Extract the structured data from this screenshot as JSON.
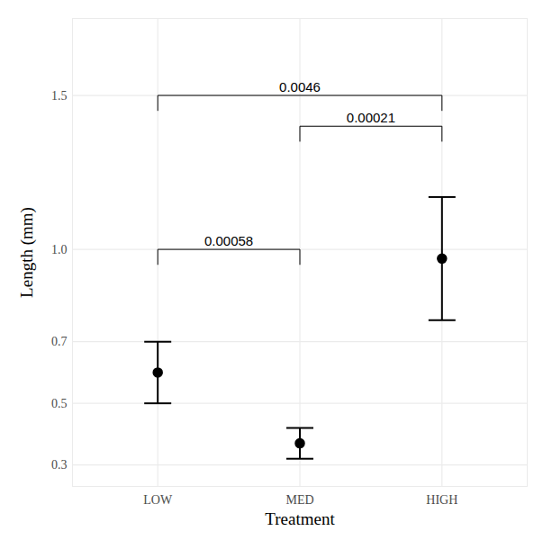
{
  "chart_data": {
    "type": "errorbar",
    "x_label": "Treatment",
    "y_label": "Length (mm)",
    "categories": [
      "LOW",
      "MED",
      "HIGH"
    ],
    "values": [
      0.6,
      0.37,
      0.97
    ],
    "error_low": [
      0.5,
      0.32,
      0.77
    ],
    "error_high": [
      0.7,
      0.42,
      1.17
    ],
    "color": "#000000",
    "ylim": [
      0.23,
      1.75
    ],
    "yticks": [
      0.3,
      0.5,
      0.7,
      {
        "value": 1,
        "label": "1.0"
      },
      1.5
    ],
    "grid": true,
    "annotations": [
      {
        "from": "LOW",
        "to": "MED",
        "y": 1.0,
        "label": "0.00058"
      },
      {
        "from": "MED",
        "to": "HIGH",
        "y": 1.4,
        "label": "0.00021"
      },
      {
        "from": "LOW",
        "to": "HIGH",
        "y": 1.5,
        "label": "0.0046"
      }
    ]
  }
}
